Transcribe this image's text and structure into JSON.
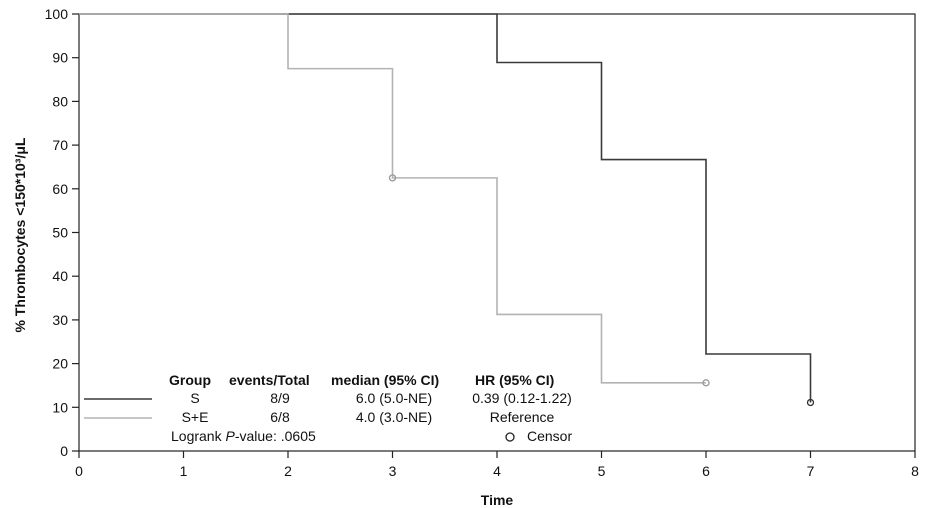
{
  "chart_data": {
    "type": "line",
    "subtype": "kaplan-meier-step",
    "xlabel": "Time",
    "ylabel": "% Thrombocytes <150*10³/μL",
    "xlim": [
      0,
      8
    ],
    "ylim": [
      0,
      100
    ],
    "xticks": [
      "0",
      "1",
      "2",
      "3",
      "4",
      "5",
      "6",
      "7",
      "8"
    ],
    "yticks": [
      "0",
      "10",
      "20",
      "30",
      "40",
      "50",
      "60",
      "70",
      "80",
      "90",
      "100"
    ],
    "grid": false,
    "series": [
      {
        "name": "S",
        "color": "#3a3a3a",
        "steps": [
          [
            0,
            100
          ],
          [
            4,
            100
          ],
          [
            4,
            88.9
          ],
          [
            5,
            88.9
          ],
          [
            5,
            66.7
          ],
          [
            6,
            66.7
          ],
          [
            6,
            22.2
          ],
          [
            7,
            22.2
          ],
          [
            7,
            11.1
          ]
        ],
        "censored": [
          [
            7,
            11.1
          ]
        ]
      },
      {
        "name": "S+E",
        "color": "#b3b3b3",
        "steps": [
          [
            0,
            100
          ],
          [
            2,
            100
          ],
          [
            2,
            87.5
          ],
          [
            3,
            87.5
          ],
          [
            3,
            62.5
          ],
          [
            4,
            62.5
          ],
          [
            4,
            31.25
          ],
          [
            5,
            31.25
          ],
          [
            5,
            15.6
          ],
          [
            6,
            15.6
          ]
        ],
        "censored": [
          [
            3,
            62.5
          ],
          [
            6,
            15.6
          ]
        ]
      }
    ],
    "legend": {
      "placement": "bottom-left",
      "headers": [
        "Group",
        "events/Total",
        "median (95% CI)",
        "HR (95% CI)"
      ],
      "rows": [
        {
          "group": "S",
          "events": "8/9",
          "median": "6.0 (5.0-NE)",
          "hr": "0.39 (0.12-1.22)"
        },
        {
          "group": "S+E",
          "events": "6/8",
          "median": "4.0 (3.0-NE)",
          "hr": "Reference"
        }
      ],
      "logrank_prefix": "Logrank ",
      "logrank_p": "P",
      "logrank_suffix": "-value: .0605",
      "censor_label": "Censor"
    }
  }
}
